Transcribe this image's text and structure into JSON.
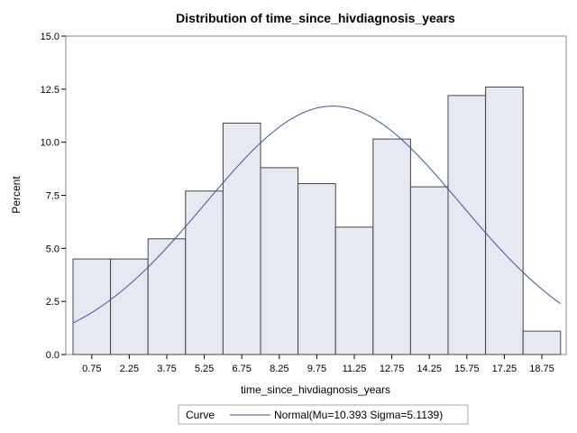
{
  "chart_data": {
    "type": "bar",
    "title": "Distribution of time_since_hivdiagnosis_years",
    "xlabel": "time_since_hivdiagnosis_years",
    "ylabel": "Percent",
    "categories": [
      "0.75",
      "2.25",
      "3.75",
      "5.25",
      "6.75",
      "8.25",
      "9.75",
      "11.25",
      "12.75",
      "14.25",
      "15.75",
      "17.25",
      "18.75"
    ],
    "bin_centers": [
      0.75,
      2.25,
      3.75,
      5.25,
      6.75,
      8.25,
      9.75,
      11.25,
      12.75,
      14.25,
      15.75,
      17.25,
      18.75
    ],
    "bin_width": 1.5,
    "values": [
      4.5,
      4.5,
      5.45,
      7.7,
      10.9,
      8.8,
      8.05,
      6.0,
      10.15,
      7.9,
      12.2,
      12.6,
      1.1
    ],
    "ylim": [
      0,
      15
    ],
    "yticks": [
      "0.0",
      "2.5",
      "5.0",
      "7.5",
      "10.0",
      "12.5",
      "15.0"
    ],
    "curve": {
      "type": "normal",
      "mu": 10.393,
      "sigma": 5.1139
    },
    "legend": {
      "position": "bottom",
      "title": "Curve",
      "entries": [
        "Normal(Mu=10.393 Sigma=5.1139)"
      ]
    },
    "colors": {
      "bar_fill": "#e6e9f2",
      "bar_stroke": "#444444",
      "curve": "#3d55a0",
      "frame": "#888888"
    },
    "grid": false
  }
}
